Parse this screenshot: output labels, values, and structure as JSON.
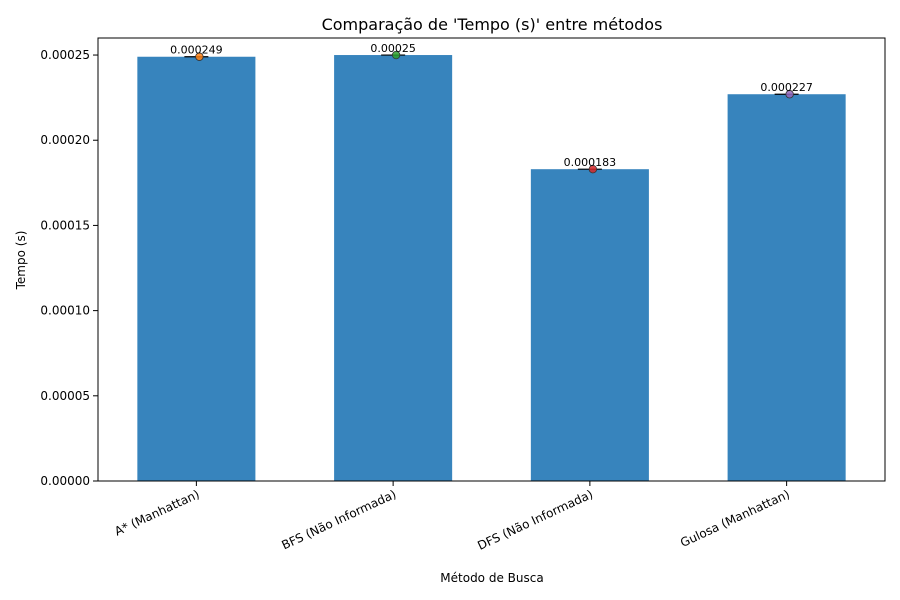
{
  "chart_data": {
    "type": "bar",
    "title": "Comparação de 'Tempo (s)' entre métodos",
    "xlabel": "Método de Busca",
    "ylabel": "Tempo (s)",
    "categories": [
      "A* (Manhattan)",
      "BFS (Não Informada)",
      "DFS (Não Informada)",
      "Gulosa (Manhattan)"
    ],
    "values": [
      0.000249,
      0.00025,
      0.000183,
      0.000227
    ],
    "value_labels": [
      "0.000249",
      "0.00025",
      "0.000183",
      "0.000227"
    ],
    "ylim": [
      0,
      0.00026
    ],
    "yticks": [
      0,
      5e-05,
      0.0001,
      0.00015,
      0.0002,
      0.00025
    ],
    "ytick_labels": [
      "0.00000",
      "0.00005",
      "0.00010",
      "0.00015",
      "0.00020",
      "0.00025"
    ],
    "grid": false,
    "colors": {
      "bar": "#3784bd",
      "points": [
        "#ff7f0e",
        "#2ca02c",
        "#d62728",
        "#9467bd"
      ]
    }
  }
}
